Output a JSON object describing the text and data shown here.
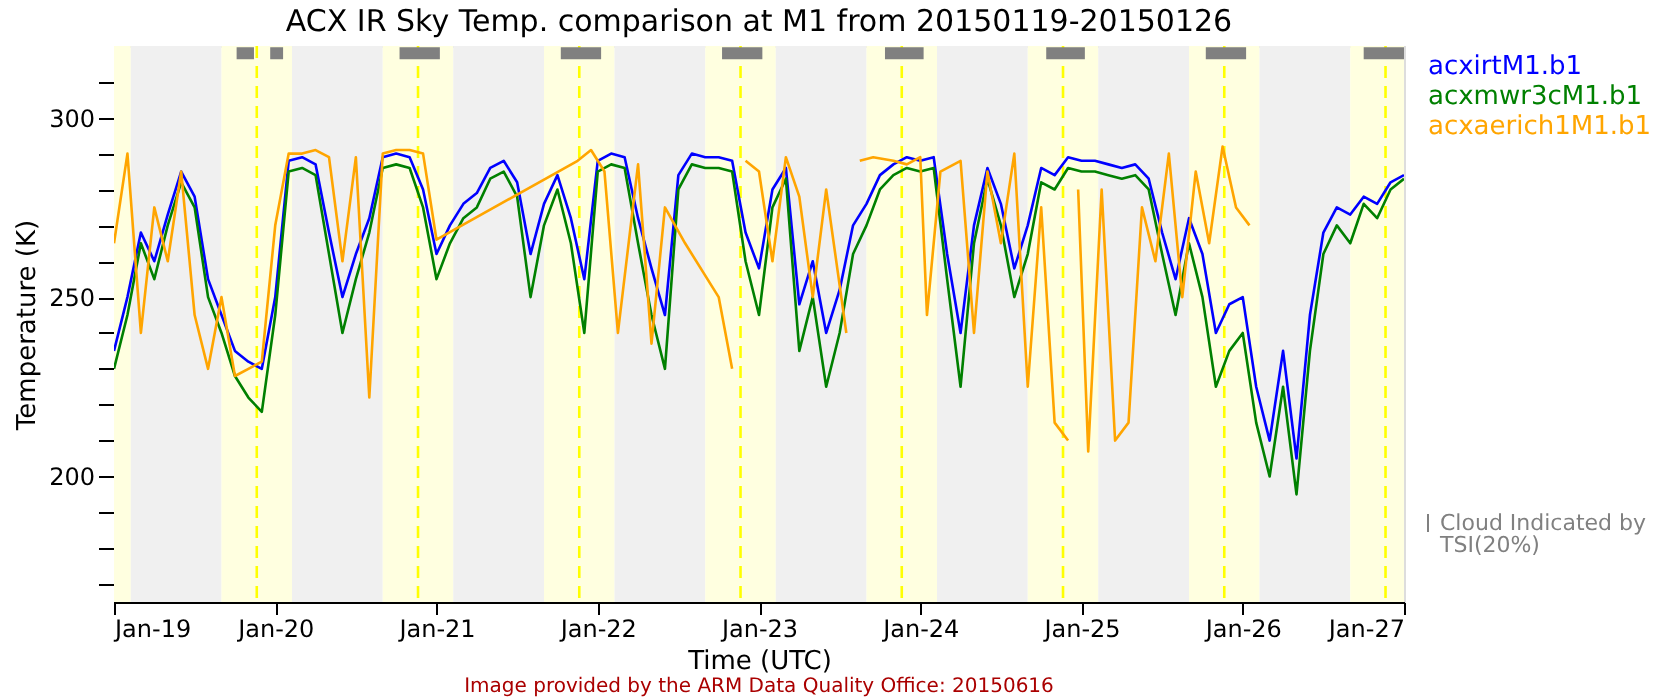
{
  "chart_data": {
    "type": "line",
    "title": "ACX IR Sky Temp. comparison at M1 from 20150119-20150126",
    "xlabel": "Time (UTC)",
    "ylabel": "Temperature (K)",
    "annotations": [
      "Image provided by the ARM Data Quality Office: 20150616"
    ],
    "xlim": [
      "2015-01-19T00:00",
      "2015-01-27T00:00"
    ],
    "xticks": [
      {
        "value": "2015-01-19",
        "label": "Jan-19"
      },
      {
        "value": "2015-01-20",
        "label": "Jan-20"
      },
      {
        "value": "2015-01-21",
        "label": "Jan-21"
      },
      {
        "value": "2015-01-22",
        "label": "Jan-22"
      },
      {
        "value": "2015-01-23",
        "label": "Jan-23"
      },
      {
        "value": "2015-01-24",
        "label": "Jan-24"
      },
      {
        "value": "2015-01-25",
        "label": "Jan-25"
      },
      {
        "value": "2015-01-26",
        "label": "Jan-26"
      },
      {
        "value": "2015-01-27",
        "label": "Jan-27"
      }
    ],
    "ylim": [
      165,
      320
    ],
    "yticks": [
      {
        "value": 170,
        "label": null
      },
      {
        "value": 180,
        "label": null
      },
      {
        "value": 190,
        "label": null
      },
      200,
      {
        "value": 210,
        "label": null
      },
      {
        "value": 220,
        "label": null
      },
      {
        "value": 230,
        "label": null
      },
      {
        "value": 240,
        "label": null
      },
      250,
      {
        "value": 260,
        "label": null
      },
      {
        "value": 270,
        "label": null
      },
      {
        "value": 280,
        "label": null
      },
      {
        "value": 290,
        "label": null
      },
      300,
      {
        "value": 310,
        "label": null
      }
    ],
    "legend": "right",
    "x": [
      "2015-01-19T00:00",
      "2015-01-19T02:00",
      "2015-01-19T04:00",
      "2015-01-19T06:00",
      "2015-01-19T08:00",
      "2015-01-19T10:00",
      "2015-01-19T12:00",
      "2015-01-19T14:00",
      "2015-01-19T16:00",
      "2015-01-19T18:00",
      "2015-01-19T20:00",
      "2015-01-19T22:00",
      "2015-01-20T00:00",
      "2015-01-20T02:00",
      "2015-01-20T04:00",
      "2015-01-20T06:00",
      "2015-01-20T08:00",
      "2015-01-20T10:00",
      "2015-01-20T12:00",
      "2015-01-20T14:00",
      "2015-01-20T16:00",
      "2015-01-20T18:00",
      "2015-01-20T20:00",
      "2015-01-20T22:00",
      "2015-01-21T00:00",
      "2015-01-21T02:00",
      "2015-01-21T04:00",
      "2015-01-21T06:00",
      "2015-01-21T08:00",
      "2015-01-21T10:00",
      "2015-01-21T12:00",
      "2015-01-21T14:00",
      "2015-01-21T16:00",
      "2015-01-21T18:00",
      "2015-01-21T20:00",
      "2015-01-21T22:00",
      "2015-01-22T00:00",
      "2015-01-22T02:00",
      "2015-01-22T04:00",
      "2015-01-22T06:00",
      "2015-01-22T08:00",
      "2015-01-22T10:00",
      "2015-01-22T12:00",
      "2015-01-22T14:00",
      "2015-01-22T16:00",
      "2015-01-22T18:00",
      "2015-01-22T20:00",
      "2015-01-22T22:00",
      "2015-01-23T00:00",
      "2015-01-23T02:00",
      "2015-01-23T04:00",
      "2015-01-23T06:00",
      "2015-01-23T08:00",
      "2015-01-23T10:00",
      "2015-01-23T12:00",
      "2015-01-23T14:00",
      "2015-01-23T16:00",
      "2015-01-23T18:00",
      "2015-01-23T20:00",
      "2015-01-23T22:00",
      "2015-01-24T00:00",
      "2015-01-24T02:00",
      "2015-01-24T04:00",
      "2015-01-24T06:00",
      "2015-01-24T08:00",
      "2015-01-24T10:00",
      "2015-01-24T12:00",
      "2015-01-24T14:00",
      "2015-01-24T16:00",
      "2015-01-24T18:00",
      "2015-01-24T20:00",
      "2015-01-24T22:00",
      "2015-01-25T00:00",
      "2015-01-25T02:00",
      "2015-01-25T04:00",
      "2015-01-25T06:00",
      "2015-01-25T08:00",
      "2015-01-25T10:00",
      "2015-01-25T12:00",
      "2015-01-25T14:00",
      "2015-01-25T16:00",
      "2015-01-25T18:00",
      "2015-01-25T20:00",
      "2015-01-25T22:00",
      "2015-01-26T00:00",
      "2015-01-26T02:00",
      "2015-01-26T04:00",
      "2015-01-26T06:00",
      "2015-01-26T08:00",
      "2015-01-26T10:00",
      "2015-01-26T12:00",
      "2015-01-26T14:00",
      "2015-01-26T16:00",
      "2015-01-26T18:00",
      "2015-01-26T20:00",
      "2015-01-26T22:00",
      "2015-01-27T00:00"
    ],
    "series": [
      {
        "name": "acxirtM1.b1",
        "color": "#0000ff",
        "values": [
          235,
          250,
          268,
          260,
          273,
          285,
          278,
          255,
          245,
          235,
          232,
          230,
          250,
          288,
          289,
          287,
          268,
          250,
          262,
          272,
          289,
          290,
          289,
          280,
          262,
          270,
          276,
          279,
          286,
          288,
          282,
          262,
          276,
          284,
          272,
          255,
          288,
          290,
          289,
          272,
          258,
          245,
          284,
          290,
          289,
          289,
          288,
          268,
          258,
          280,
          286,
          248,
          260,
          240,
          252,
          270,
          276,
          284,
          287,
          289,
          288,
          289,
          262,
          240,
          270,
          286,
          276,
          258,
          270,
          286,
          284,
          289,
          288,
          288,
          287,
          286,
          287,
          283,
          268,
          255,
          272,
          262,
          240,
          248,
          250,
          225,
          210,
          235,
          205,
          245,
          268,
          275,
          273,
          278,
          276,
          282,
          284
        ]
      },
      {
        "name": "acxmwr3cM1.b1",
        "color": "#008000",
        "values": [
          230,
          245,
          265,
          255,
          270,
          282,
          275,
          250,
          240,
          228,
          222,
          218,
          245,
          285,
          286,
          284,
          262,
          240,
          255,
          268,
          286,
          287,
          286,
          275,
          255,
          265,
          272,
          275,
          283,
          285,
          278,
          250,
          270,
          280,
          265,
          240,
          285,
          287,
          286,
          265,
          245,
          230,
          280,
          287,
          286,
          286,
          285,
          260,
          245,
          275,
          283,
          235,
          250,
          225,
          240,
          262,
          270,
          280,
          284,
          286,
          285,
          286,
          255,
          225,
          265,
          283,
          270,
          250,
          262,
          282,
          280,
          286,
          285,
          285,
          284,
          283,
          284,
          280,
          262,
          245,
          265,
          250,
          225,
          235,
          240,
          215,
          200,
          225,
          195,
          235,
          262,
          270,
          265,
          276,
          272,
          280,
          283
        ]
      },
      {
        "name": "acxaerich1M1.b1",
        "color": "#ffa500",
        "x": [
          "2015-01-19T00:00",
          "2015-01-19T02:00",
          "2015-01-19T04:00",
          "2015-01-19T06:00",
          "2015-01-19T08:00",
          "2015-01-19T10:00",
          "2015-01-19T12:00",
          "2015-01-19T14:00",
          "2015-01-19T16:00",
          "2015-01-19T18:00",
          "2015-01-19T20:00",
          "2015-01-19T22:00",
          "2015-01-20T00:00",
          "2015-01-20T02:00",
          "2015-01-20T04:00",
          "2015-01-20T06:00",
          "2015-01-20T08:00",
          "2015-01-20T10:00",
          "2015-01-20T12:00",
          "2015-01-20T14:00",
          "2015-01-20T16:00",
          "2015-01-20T18:00",
          "2015-01-20T20:00",
          "2015-01-20T22:00",
          "2015-01-21T00:00",
          "2015-01-21T21:00",
          "2015-01-21T23:00",
          "2015-01-22T01:00",
          "2015-01-22T03:00",
          "2015-01-22T06:00",
          "2015-01-22T08:00",
          "2015-01-22T10:00",
          "2015-01-22T13:00",
          "2015-01-22T18:00",
          "2015-01-22T20:00",
          "2015-01-22T21:00",
          "2015-01-22T22:00",
          "2015-01-23T00:00",
          "2015-01-23T02:00",
          "2015-01-23T04:00",
          "2015-01-23T06:00",
          "2015-01-23T08:00",
          "2015-01-23T10:00",
          "2015-01-23T13:00",
          "2015-01-23T14:00",
          "2015-01-23T15:00",
          "2015-01-23T17:00",
          "2015-01-23T20:00",
          "2015-01-23T22:00",
          "2015-01-24T00:00",
          "2015-01-24T01:00",
          "2015-01-24T03:00",
          "2015-01-24T06:00",
          "2015-01-24T08:00",
          "2015-01-24T10:00",
          "2015-01-24T12:00",
          "2015-01-24T14:00",
          "2015-01-24T16:00",
          "2015-01-24T18:00",
          "2015-01-24T20:00",
          "2015-01-24T22:00",
          "2015-01-24T22:30",
          "2015-01-24T23:30",
          "2015-01-25T01:00",
          "2015-01-25T03:00",
          "2015-01-25T05:00",
          "2015-01-25T07:00",
          "2015-01-25T09:00",
          "2015-01-25T11:00",
          "2015-01-25T13:00",
          "2015-01-25T15:00",
          "2015-01-25T17:00",
          "2015-01-25T19:00",
          "2015-01-25T21:00",
          "2015-01-25T23:00",
          "2015-01-26T01:00"
        ],
        "values": [
          265,
          290,
          240,
          275,
          260,
          285,
          245,
          230,
          250,
          228,
          230,
          232,
          270,
          290,
          290,
          291,
          289,
          260,
          289,
          222,
          290,
          291,
          291,
          290,
          266,
          288,
          291,
          285,
          240,
          287,
          237,
          275,
          265,
          250,
          230,
          null,
          288,
          285,
          260,
          289,
          278,
          250,
          280,
          240,
          null,
          288,
          289,
          288,
          287,
          289,
          245,
          285,
          288,
          240,
          285,
          265,
          290,
          225,
          275,
          215,
          210,
          null,
          280,
          207,
          280,
          210,
          215,
          275,
          260,
          290,
          250,
          285,
          265,
          292,
          275,
          270
        ]
      },
      {
        "name": "Cloud Indicated by TSI(20%)",
        "color": "#808080",
        "x": [
          "2015-01-19T18:15",
          "2015-01-19T20:50",
          "2015-01-19T22:00",
          "2015-01-19T23:15",
          "2015-01-20T01:10",
          "2015-01-20T12:00",
          "2015-01-20T18:30",
          "2015-01-21T00:30",
          "2015-01-21T12:00",
          "2015-01-21T18:30",
          "2015-01-22T00:30",
          "2015-01-22T12:00",
          "2015-01-22T18:30",
          "2015-01-23T00:30",
          "2015-01-23T12:00",
          "2015-01-23T18:45",
          "2015-01-24T00:30",
          "2015-01-24T12:00",
          "2015-01-24T18:45",
          "2015-01-25T00:30",
          "2015-01-25T12:00",
          "2015-01-25T18:30",
          "2015-01-26T00:30",
          "2015-01-26T12:00",
          "2015-01-26T18:00",
          "2015-01-27T00:00"
        ],
        "values": [
          318,
          318,
          null,
          318,
          318,
          null,
          318,
          318,
          null,
          318,
          318,
          null,
          318,
          318,
          null,
          318,
          318,
          null,
          318,
          318,
          null,
          318,
          318,
          null,
          318,
          318
        ]
      }
    ],
    "bands": [
      {
        "axis": "x",
        "from": "2015-01-19T00:00",
        "to": "2015-01-19T02:30",
        "color": "#ffffe0"
      },
      {
        "axis": "x",
        "from": "2015-01-19T02:30",
        "to": "2015-01-19T16:00",
        "color": "#f0f0f0"
      },
      {
        "axis": "x",
        "from": "2015-01-19T16:00",
        "to": "2015-01-20T02:30",
        "color": "#ffffe0"
      },
      {
        "axis": "x",
        "from": "2015-01-20T02:30",
        "to": "2015-01-20T16:00",
        "color": "#f0f0f0"
      },
      {
        "axis": "x",
        "from": "2015-01-20T16:00",
        "to": "2015-01-21T02:30",
        "color": "#ffffe0"
      },
      {
        "axis": "x",
        "from": "2015-01-21T02:30",
        "to": "2015-01-21T16:00",
        "color": "#f0f0f0"
      },
      {
        "axis": "x",
        "from": "2015-01-21T16:00",
        "to": "2015-01-22T02:30",
        "color": "#ffffe0"
      },
      {
        "axis": "x",
        "from": "2015-01-22T02:30",
        "to": "2015-01-22T16:00",
        "color": "#f0f0f0"
      },
      {
        "axis": "x",
        "from": "2015-01-22T16:00",
        "to": "2015-01-23T02:30",
        "color": "#ffffe0"
      },
      {
        "axis": "x",
        "from": "2015-01-23T02:30",
        "to": "2015-01-23T16:00",
        "color": "#f0f0f0"
      },
      {
        "axis": "x",
        "from": "2015-01-23T16:00",
        "to": "2015-01-24T02:30",
        "color": "#ffffe0"
      },
      {
        "axis": "x",
        "from": "2015-01-24T02:30",
        "to": "2015-01-24T16:00",
        "color": "#f0f0f0"
      },
      {
        "axis": "x",
        "from": "2015-01-24T16:00",
        "to": "2015-01-25T02:30",
        "color": "#ffffe0"
      },
      {
        "axis": "x",
        "from": "2015-01-25T02:30",
        "to": "2015-01-25T16:00",
        "color": "#f0f0f0"
      },
      {
        "axis": "x",
        "from": "2015-01-25T16:00",
        "to": "2015-01-26T02:30",
        "color": "#ffffe0"
      },
      {
        "axis": "x",
        "from": "2015-01-26T02:30",
        "to": "2015-01-26T16:00",
        "color": "#f0f0f0"
      },
      {
        "axis": "x",
        "from": "2015-01-26T16:00",
        "to": "2015-01-27T00:00",
        "color": "#ffffe0"
      }
    ],
    "ref_lines": [
      {
        "axis": "x",
        "value": "2015-01-19T21:15",
        "color": "#ffff00",
        "line_style": "dashed"
      },
      {
        "axis": "x",
        "value": "2015-01-20T21:15",
        "color": "#ffff00",
        "line_style": "dashed"
      },
      {
        "axis": "x",
        "value": "2015-01-21T21:15",
        "color": "#ffff00",
        "line_style": "dashed"
      },
      {
        "axis": "x",
        "value": "2015-01-22T21:15",
        "color": "#ffff00",
        "line_style": "dashed"
      },
      {
        "axis": "x",
        "value": "2015-01-23T21:15",
        "color": "#ffff00",
        "line_style": "dashed"
      },
      {
        "axis": "x",
        "value": "2015-01-24T21:15",
        "color": "#ffff00",
        "line_style": "dashed"
      },
      {
        "axis": "x",
        "value": "2015-01-25T21:15",
        "color": "#ffff00",
        "line_style": "dashed"
      },
      {
        "axis": "x",
        "value": "2015-01-26T21:15",
        "color": "#ffff00",
        "line_style": "dashed"
      }
    ]
  }
}
